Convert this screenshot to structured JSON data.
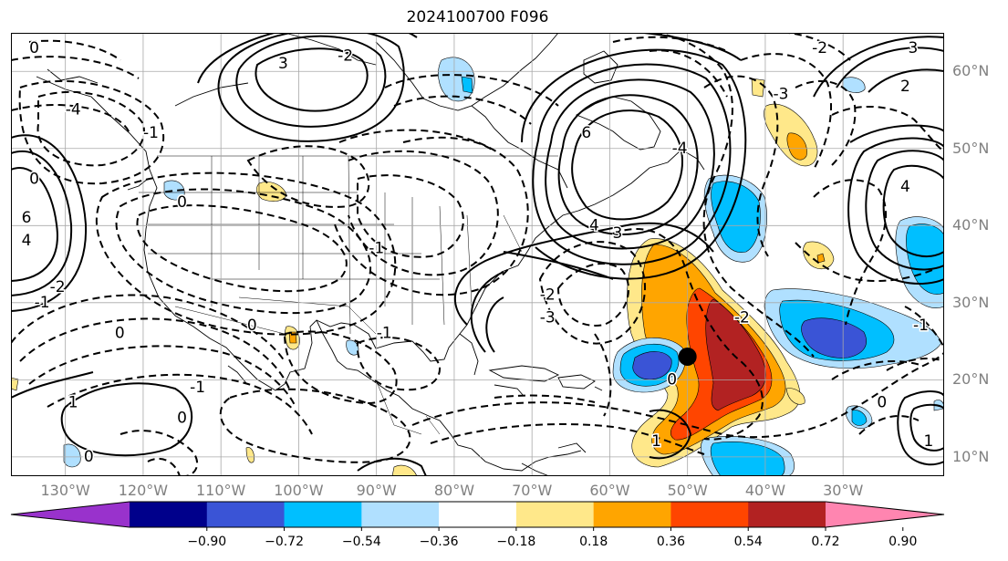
{
  "title": "2024100700 F096",
  "map": {
    "lat_labels": [
      {
        "text": "60°N",
        "lat": 60
      },
      {
        "text": "50°N",
        "lat": 50
      },
      {
        "text": "40°N",
        "lat": 40
      },
      {
        "text": "30°N",
        "lat": 30
      },
      {
        "text": "20°N",
        "lat": 20
      },
      {
        "text": "10°N",
        "lat": 10
      }
    ],
    "lon_labels": [
      {
        "text": "130°W",
        "lon": -130
      },
      {
        "text": "120°W",
        "lon": -120
      },
      {
        "text": "110°W",
        "lon": -110
      },
      {
        "text": "100°W",
        "lon": -100
      },
      {
        "text": "90°W",
        "lon": -90
      },
      {
        "text": "80°W",
        "lon": -80
      },
      {
        "text": "70°W",
        "lon": -70
      },
      {
        "text": "60°W",
        "lon": -60
      },
      {
        "text": "50°W",
        "lon": -50
      },
      {
        "text": "40°W",
        "lon": -40
      },
      {
        "text": "30°W",
        "lon": -30
      }
    ],
    "extent": {
      "lon_min": -137,
      "lon_max": -17,
      "lat_min": 7.5,
      "lat_max": 65
    },
    "marker": {
      "lon": -50,
      "lat": 23
    }
  },
  "colorbar": {
    "colors": [
      "#9932cc",
      "#00008b",
      "#3a54d6",
      "#00bfff",
      "#b0e0ff",
      "#ffffff",
      "#ffe88a",
      "#ffa500",
      "#ff4500",
      "#b22222",
      "#ff85b0"
    ],
    "ticks": [
      "−0.90",
      "−0.72",
      "−0.54",
      "−0.36",
      "−0.18",
      "0.18",
      "0.36",
      "0.54",
      "0.72",
      "0.90"
    ]
  },
  "contour_labels": [
    {
      "text": "0",
      "lon": -134,
      "lat": 63
    },
    {
      "text": "-4",
      "lon": -129,
      "lat": 55
    },
    {
      "text": "-1",
      "lon": -119,
      "lat": 52
    },
    {
      "text": "0",
      "lon": -134,
      "lat": 46
    },
    {
      "text": "6",
      "lon": -135,
      "lat": 41
    },
    {
      "text": "4",
      "lon": -135,
      "lat": 38
    },
    {
      "text": "3",
      "lon": -102,
      "lat": 61
    },
    {
      "text": "-2",
      "lon": -94,
      "lat": 62
    },
    {
      "text": "0",
      "lon": -115,
      "lat": 43
    },
    {
      "text": "-1",
      "lon": -90,
      "lat": 37
    },
    {
      "text": "6",
      "lon": -63,
      "lat": 52
    },
    {
      "text": "4",
      "lon": -62,
      "lat": 40
    },
    {
      "text": "3",
      "lon": -59,
      "lat": 39
    },
    {
      "text": "-2",
      "lon": -68,
      "lat": 31
    },
    {
      "text": "-3",
      "lon": -68,
      "lat": 28
    },
    {
      "text": "-4",
      "lon": -51,
      "lat": 50
    },
    {
      "text": "-3",
      "lon": -38,
      "lat": 57
    },
    {
      "text": "-2",
      "lon": -33,
      "lat": 63
    },
    {
      "text": "3",
      "lon": -21,
      "lat": 63
    },
    {
      "text": "2",
      "lon": -22,
      "lat": 58
    },
    {
      "text": "4",
      "lon": -22,
      "lat": 45
    },
    {
      "text": "-1",
      "lon": -133,
      "lat": 30
    },
    {
      "text": "-2",
      "lon": -131,
      "lat": 32
    },
    {
      "text": "0",
      "lon": -123,
      "lat": 26
    },
    {
      "text": "-1",
      "lon": -113,
      "lat": 19
    },
    {
      "text": "-1",
      "lon": -89,
      "lat": 26
    },
    {
      "text": "0",
      "lon": -106,
      "lat": 27
    },
    {
      "text": "1",
      "lon": -129,
      "lat": 17
    },
    {
      "text": "0",
      "lon": -115,
      "lat": 15
    },
    {
      "text": "0",
      "lon": -127,
      "lat": 10
    },
    {
      "text": "-2",
      "lon": -43,
      "lat": 28
    },
    {
      "text": "0",
      "lon": -52,
      "lat": 20
    },
    {
      "text": "1",
      "lon": -54,
      "lat": 12
    },
    {
      "text": "-1",
      "lon": -20,
      "lat": 27
    },
    {
      "text": "0",
      "lon": -25,
      "lat": 17
    },
    {
      "text": "1",
      "lon": -19,
      "lat": 12
    }
  ]
}
